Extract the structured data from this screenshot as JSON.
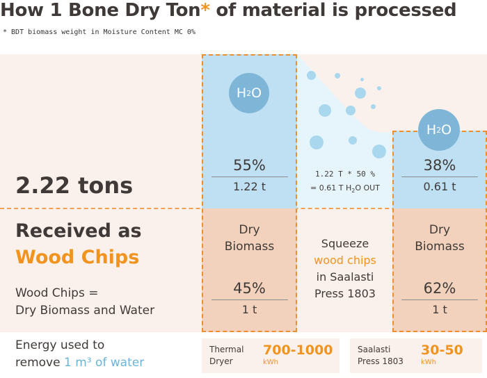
{
  "header": {
    "title_prefix": "How 1 Bone Dry Ton",
    "title_star": "*",
    "title_suffix": " of material is processed",
    "footnote": "* BDT biomass weight in Moisture Content MC 0%"
  },
  "received": {
    "tons": "2.22 tons",
    "label_line1": "Received as",
    "label_line2": "Wood Chips",
    "equation_line1": "Wood Chips =",
    "equation_line2": "Dry Biomass and Water"
  },
  "water_symbol": {
    "main": "H",
    "sub": "2",
    "tail": "O"
  },
  "column1": {
    "water_pct": "55%",
    "water_tons": "1.22 t",
    "biomass_line1": "Dry",
    "biomass_line2": "Biomass",
    "biomass_pct": "45%",
    "biomass_tons": "1 t"
  },
  "middle": {
    "calc_line1": "1.22 T * 50 %",
    "calc_line2_prefix": "= 0.61 T H",
    "calc_line2_sub": "2",
    "calc_line2_suffix": "O OUT",
    "squeeze_line1": "Squeeze",
    "squeeze_line2": "wood chips",
    "squeeze_line3": "in Saalasti",
    "squeeze_line4": "Press 1803"
  },
  "column2": {
    "water_pct": "38%",
    "water_tons": "0.61 t",
    "biomass_line1": "Dry",
    "biomass_line2": "Biomass",
    "biomass_pct": "62%",
    "biomass_tons": "1 t"
  },
  "energy": {
    "line1": "Energy used to",
    "line2_prefix": "remove ",
    "line2_highlight": "1 m³ of water",
    "thermal_label_line1": "Thermal",
    "thermal_label_line2": "Dryer",
    "thermal_value": "700-1000",
    "thermal_unit": "kWh",
    "press_label_line1": "Saalasti",
    "press_label_line2": "Press 1803",
    "press_value": "30-50",
    "press_unit": "kWh"
  },
  "colors": {
    "accent_orange": "#f0931f",
    "water_blue": "#bfe0f3",
    "biomass_peach": "#f2d2bc",
    "highlight_blue": "#6ab4dc"
  }
}
